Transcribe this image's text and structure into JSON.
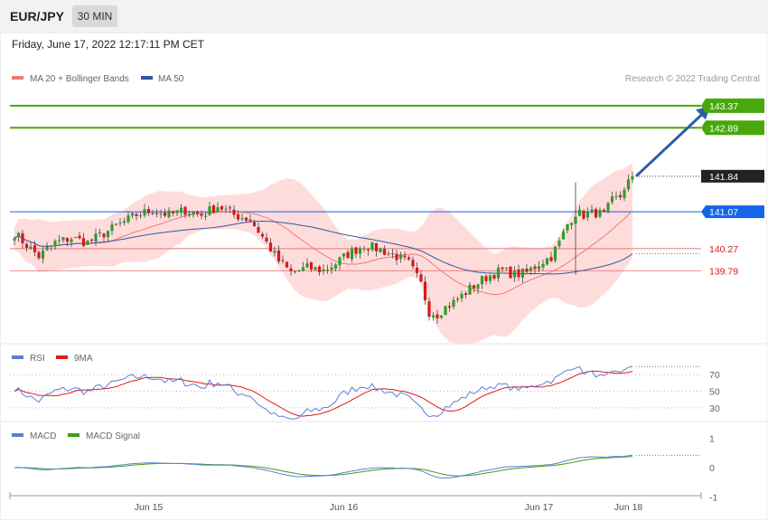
{
  "header": {
    "symbol": "EUR/JPY",
    "timeframe": "30 MIN"
  },
  "timestamp": "Friday, June 17, 2022 12:17:11 PM CET",
  "watermark": "Research © 2022 Trading Central",
  "colors": {
    "bull": "#2e9e28",
    "bear": "#d7191c",
    "ma20": "#f07878",
    "bands": "#ffd0d0",
    "ma50": "#34589e",
    "rsi": "#5b7fd6",
    "rsi_ma": "#e0191c",
    "macd": "#5b7fd6",
    "signal": "#3f9e1a",
    "resistance": "#48a80c",
    "support": "#e87878",
    "pivot": "#1565e8",
    "current": "#222222"
  },
  "chart_data": [
    {
      "type": "candlestick",
      "name": "price",
      "legend": [
        {
          "label": "MA 20 + Bollinger Bands",
          "color": "#f07878"
        },
        {
          "label": "MA 50",
          "color": "#34589e"
        }
      ],
      "ylim": [
        138.6,
        143.7
      ],
      "x_ticks": [
        {
          "label": "Jun 15",
          "index": 33
        },
        {
          "label": "Jun 16",
          "index": 81
        },
        {
          "label": "Jun 17",
          "index": 129
        },
        {
          "label": "Jun 18",
          "index": 151
        }
      ],
      "levels": [
        {
          "label": "143.37",
          "value": 143.37,
          "kind": "resistance"
        },
        {
          "label": "142.89",
          "value": 142.89,
          "kind": "resistance"
        },
        {
          "label": "141.84",
          "value": 141.84,
          "kind": "current"
        },
        {
          "label": "141.07",
          "value": 141.07,
          "kind": "pivot"
        },
        {
          "label": "140.27",
          "value": 140.27,
          "kind": "support"
        },
        {
          "label": "139.79",
          "value": 139.79,
          "kind": "support"
        }
      ],
      "arrow": {
        "from": [
          152,
          141.84
        ],
        "to": [
          166,
          143.3
        ]
      },
      "anchors": [
        [
          0,
          140.6
        ],
        [
          6,
          140.1
        ],
        [
          10,
          140.4
        ],
        [
          14,
          140.5
        ],
        [
          18,
          140.4
        ],
        [
          22,
          140.6
        ],
        [
          26,
          140.8
        ],
        [
          30,
          141.0
        ],
        [
          34,
          141.1
        ],
        [
          38,
          141.0
        ],
        [
          42,
          141.1
        ],
        [
          46,
          141.0
        ],
        [
          50,
          141.2
        ],
        [
          54,
          141.0
        ],
        [
          58,
          140.9
        ],
        [
          62,
          140.4
        ],
        [
          65,
          140.0
        ],
        [
          68,
          139.75
        ],
        [
          72,
          139.85
        ],
        [
          76,
          139.8
        ],
        [
          79,
          139.95
        ],
        [
          82,
          140.15
        ],
        [
          86,
          140.35
        ],
        [
          90,
          140.25
        ],
        [
          94,
          140.1
        ],
        [
          97,
          139.95
        ],
        [
          100,
          139.5
        ],
        [
          102,
          138.9
        ],
        [
          104,
          138.85
        ],
        [
          106,
          139.0
        ],
        [
          108,
          139.1
        ],
        [
          112,
          139.4
        ],
        [
          116,
          139.65
        ],
        [
          120,
          139.8
        ],
        [
          123,
          139.7
        ],
        [
          126,
          139.75
        ],
        [
          129,
          139.95
        ],
        [
          132,
          140.1
        ],
        [
          134,
          140.4
        ],
        [
          136,
          140.8
        ],
        [
          138,
          141.05
        ],
        [
          140,
          141.0
        ],
        [
          143,
          141.05
        ],
        [
          145,
          141.0
        ],
        [
          147,
          141.3
        ],
        [
          149,
          141.4
        ],
        [
          150,
          141.6
        ],
        [
          152,
          141.84
        ]
      ]
    },
    {
      "type": "line",
      "name": "rsi",
      "legend": [
        {
          "label": "RSI",
          "color": "#5b7fd6"
        },
        {
          "label": "9MA",
          "color": "#e0191c"
        }
      ],
      "ylim": [
        20,
        80
      ],
      "ticks": [
        "70",
        "50",
        "30"
      ],
      "tick_values": [
        70,
        50,
        30
      ]
    },
    {
      "type": "line",
      "name": "macd",
      "legend": [
        {
          "label": "MACD",
          "color": "#5b7fd6"
        },
        {
          "label": "MACD Signal",
          "color": "#3f9e1a"
        }
      ],
      "ylim": [
        -1.2,
        1.2
      ],
      "ticks": [
        "1",
        "0",
        "-1"
      ],
      "tick_values": [
        1,
        0,
        -1
      ]
    }
  ]
}
